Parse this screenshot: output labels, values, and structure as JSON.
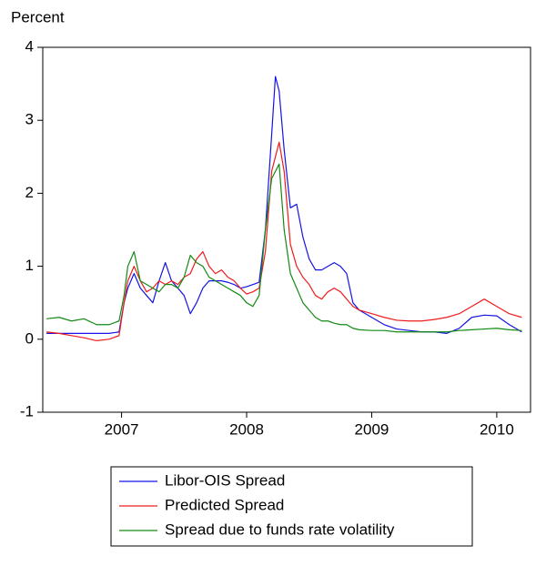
{
  "chart_data": {
    "type": "line",
    "y_label": "Percent",
    "xlim": [
      2006.87,
      2010.77
    ],
    "ylim": [
      -1,
      4
    ],
    "yticks": [
      -1,
      0,
      1,
      2,
      3,
      4
    ],
    "xticks": [
      {
        "value": 2007.5,
        "label": "2007"
      },
      {
        "value": 2008.5,
        "label": "2008"
      },
      {
        "value": 2009.5,
        "label": "2009"
      },
      {
        "value": 2010.5,
        "label": "2010"
      }
    ],
    "legend": "bottom",
    "x": [
      2006.9,
      2007.0,
      2007.1,
      2007.2,
      2007.3,
      2007.4,
      2007.48,
      2007.52,
      2007.55,
      2007.6,
      2007.65,
      2007.7,
      2007.75,
      2007.8,
      2007.85,
      2007.9,
      2007.95,
      2008.0,
      2008.05,
      2008.1,
      2008.15,
      2008.2,
      2008.25,
      2008.3,
      2008.35,
      2008.4,
      2008.45,
      2008.5,
      2008.55,
      2008.6,
      2008.65,
      2008.7,
      2008.73,
      2008.76,
      2008.8,
      2008.85,
      2008.9,
      2008.95,
      2009.0,
      2009.05,
      2009.1,
      2009.15,
      2009.2,
      2009.25,
      2009.3,
      2009.35,
      2009.4,
      2009.5,
      2009.6,
      2009.7,
      2009.8,
      2009.9,
      2010.0,
      2010.1,
      2010.2,
      2010.3,
      2010.4,
      2010.5,
      2010.6,
      2010.7
    ],
    "series": [
      {
        "name": "Libor-OIS Spread",
        "color": "#1414e6",
        "values": [
          0.08,
          0.08,
          0.08,
          0.08,
          0.08,
          0.08,
          0.1,
          0.5,
          0.7,
          0.9,
          0.7,
          0.6,
          0.5,
          0.8,
          1.05,
          0.8,
          0.7,
          0.6,
          0.35,
          0.5,
          0.7,
          0.8,
          0.8,
          0.8,
          0.78,
          0.75,
          0.7,
          0.72,
          0.75,
          0.78,
          1.5,
          2.8,
          3.6,
          3.4,
          2.6,
          1.8,
          1.85,
          1.4,
          1.1,
          0.95,
          0.95,
          1.0,
          1.05,
          1.0,
          0.9,
          0.5,
          0.4,
          0.3,
          0.2,
          0.14,
          0.12,
          0.1,
          0.1,
          0.08,
          0.15,
          0.3,
          0.33,
          0.32,
          0.2,
          0.1
        ]
      },
      {
        "name": "Predicted Spread",
        "color": "#ee1c1c",
        "values": [
          0.1,
          0.08,
          0.05,
          0.02,
          -0.02,
          0.0,
          0.05,
          0.5,
          0.8,
          1.0,
          0.8,
          0.65,
          0.7,
          0.8,
          0.75,
          0.8,
          0.75,
          0.85,
          0.9,
          1.1,
          1.2,
          1.0,
          0.9,
          0.95,
          0.85,
          0.8,
          0.7,
          0.62,
          0.65,
          0.7,
          1.2,
          2.3,
          2.5,
          2.7,
          2.3,
          1.3,
          1.0,
          0.85,
          0.75,
          0.6,
          0.55,
          0.65,
          0.7,
          0.65,
          0.55,
          0.45,
          0.4,
          0.35,
          0.3,
          0.26,
          0.25,
          0.25,
          0.27,
          0.3,
          0.35,
          0.45,
          0.55,
          0.45,
          0.35,
          0.3
        ]
      },
      {
        "name": "Spread due to funds rate volatility",
        "color": "#138a13",
        "values": [
          0.28,
          0.3,
          0.25,
          0.28,
          0.2,
          0.2,
          0.25,
          0.6,
          1.0,
          1.2,
          0.8,
          0.75,
          0.7,
          0.65,
          0.75,
          0.75,
          0.7,
          0.85,
          1.15,
          1.05,
          1.0,
          0.85,
          0.8,
          0.75,
          0.7,
          0.65,
          0.6,
          0.5,
          0.45,
          0.6,
          1.5,
          2.2,
          2.3,
          2.4,
          1.5,
          0.9,
          0.7,
          0.5,
          0.4,
          0.3,
          0.25,
          0.25,
          0.22,
          0.2,
          0.2,
          0.15,
          0.13,
          0.12,
          0.12,
          0.1,
          0.1,
          0.1,
          0.1,
          0.1,
          0.12,
          0.13,
          0.14,
          0.15,
          0.13,
          0.12
        ]
      }
    ]
  }
}
